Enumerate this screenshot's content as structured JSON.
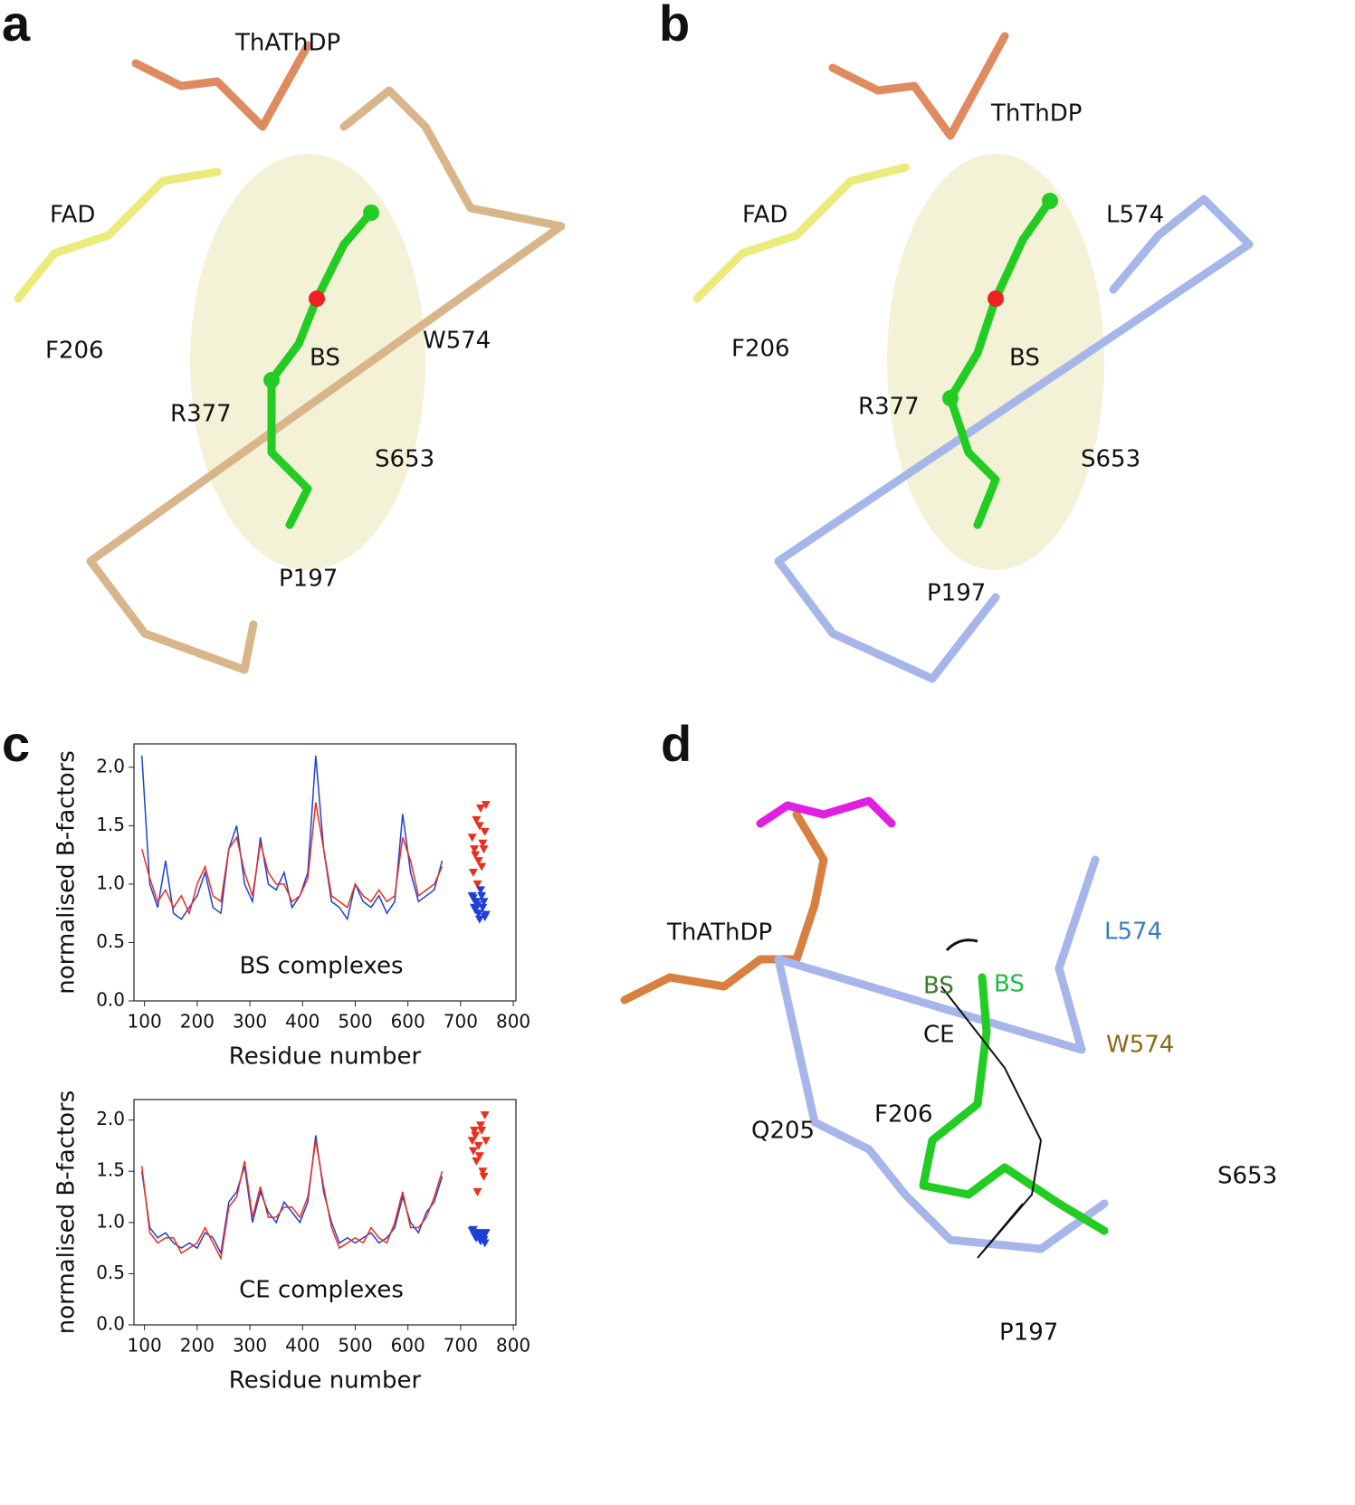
{
  "panel_a": {
    "label": "a",
    "texts": [
      "ThAThDP",
      "FAD",
      "F206",
      "R377",
      "BS",
      "W574",
      "S653",
      "P197"
    ]
  },
  "panel_b": {
    "label": "b",
    "texts": [
      "ThThDP",
      "FAD",
      "L574",
      "F206",
      "R377",
      "BS",
      "S653",
      "P197"
    ]
  },
  "panel_c": {
    "label": "c"
  },
  "panel_d": {
    "label": "d",
    "texts": [
      "ThAThDP",
      "L574",
      "BS",
      "BS",
      "CE",
      "W574",
      "Q205",
      "F206",
      "S653",
      "P197"
    ]
  },
  "chart_data": [
    {
      "type": "line",
      "ylabel": "normalised B-factors",
      "xlabel": "Residue number",
      "annotation": "BS complexes",
      "xlim": [
        80,
        805
      ],
      "ylim": [
        0,
        2.2
      ],
      "xticks": [
        100,
        200,
        300,
        400,
        500,
        600,
        700,
        800
      ],
      "yticks": [
        {
          "value": 0,
          "label": "0.0"
        },
        0.5,
        {
          "value": 1,
          "label": "1.0"
        },
        1.5,
        {
          "value": 2,
          "label": "2.0"
        }
      ],
      "series": [
        {
          "color": "#1f3fd8",
          "x": [
            95,
            110,
            125,
            140,
            155,
            170,
            185,
            200,
            215,
            230,
            245,
            260,
            275,
            290,
            305,
            320,
            335,
            350,
            365,
            380,
            395,
            410,
            425,
            440,
            455,
            470,
            485,
            500,
            515,
            530,
            545,
            560,
            575,
            590,
            605,
            620,
            635,
            650,
            665
          ],
          "values": [
            2.1,
            1.0,
            0.8,
            1.2,
            0.75,
            0.7,
            0.8,
            0.9,
            1.1,
            0.8,
            0.75,
            1.3,
            1.5,
            1.0,
            0.85,
            1.4,
            1.0,
            0.95,
            1.1,
            0.8,
            0.9,
            1.1,
            2.1,
            1.3,
            0.85,
            0.8,
            0.7,
            1.0,
            0.85,
            0.8,
            0.9,
            0.75,
            0.85,
            1.6,
            1.1,
            0.85,
            0.9,
            0.95,
            1.2
          ]
        },
        {
          "color": "#e8301c",
          "x": [
            95,
            110,
            125,
            140,
            155,
            170,
            185,
            200,
            215,
            230,
            245,
            260,
            275,
            290,
            305,
            320,
            335,
            350,
            365,
            380,
            395,
            410,
            425,
            440,
            455,
            470,
            485,
            500,
            515,
            530,
            545,
            560,
            575,
            590,
            605,
            620,
            635,
            650,
            665
          ],
          "values": [
            1.3,
            1.05,
            0.85,
            0.95,
            0.8,
            0.9,
            0.75,
            1.0,
            1.15,
            0.9,
            0.85,
            1.3,
            1.4,
            1.1,
            0.9,
            1.35,
            1.1,
            1.0,
            1.0,
            0.85,
            0.9,
            1.05,
            1.7,
            1.3,
            0.9,
            0.85,
            0.8,
            1.0,
            0.9,
            0.85,
            0.95,
            0.85,
            0.9,
            1.4,
            1.2,
            0.9,
            0.95,
            1.0,
            1.15
          ]
        },
        {
          "color": "#e8301c",
          "marker": "triangle",
          "x": [
            722,
            726,
            730,
            734,
            738,
            742,
            746,
            724,
            728,
            732,
            736,
            740,
            744,
            748
          ],
          "values": [
            1.4,
            1.3,
            1.55,
            1.2,
            1.65,
            1.35,
            1.45,
            1.1,
            1.25,
            1.0,
            1.5,
            1.15,
            1.3,
            1.68
          ]
        },
        {
          "color": "#1f3fd8",
          "marker": "triangle",
          "x": [
            722,
            726,
            730,
            734,
            738,
            742,
            746,
            724,
            728,
            732,
            736,
            740,
            744,
            748
          ],
          "values": [
            0.9,
            0.8,
            0.85,
            0.75,
            0.95,
            0.8,
            0.72,
            0.88,
            0.78,
            0.82,
            0.7,
            0.9,
            0.85,
            0.74
          ]
        }
      ]
    },
    {
      "type": "line",
      "ylabel": "normalised B-factors",
      "xlabel": "Residue number",
      "annotation": "CE complexes",
      "xlim": [
        80,
        805
      ],
      "ylim": [
        0,
        2.2
      ],
      "xticks": [
        100,
        200,
        300,
        400,
        500,
        600,
        700,
        800
      ],
      "yticks": [
        {
          "value": 0,
          "label": "0.0"
        },
        0.5,
        {
          "value": 1,
          "label": "1.0"
        },
        1.5,
        {
          "value": 2,
          "label": "2.0"
        }
      ],
      "series": [
        {
          "color": "#1f3fd8",
          "x": [
            95,
            110,
            125,
            140,
            155,
            170,
            185,
            200,
            215,
            230,
            245,
            260,
            275,
            290,
            305,
            320,
            335,
            350,
            365,
            380,
            395,
            410,
            425,
            440,
            455,
            470,
            485,
            500,
            515,
            530,
            545,
            560,
            575,
            590,
            605,
            620,
            635,
            650,
            665
          ],
          "values": [
            1.5,
            0.95,
            0.85,
            0.9,
            0.8,
            0.75,
            0.8,
            0.75,
            0.9,
            0.85,
            0.7,
            1.2,
            1.3,
            1.55,
            1.0,
            1.3,
            1.1,
            1.0,
            1.2,
            1.1,
            1.0,
            1.2,
            1.85,
            1.3,
            1.0,
            0.8,
            0.85,
            0.8,
            0.85,
            0.9,
            0.8,
            0.85,
            0.95,
            1.25,
            1.0,
            0.9,
            1.1,
            1.2,
            1.45
          ]
        },
        {
          "color": "#e8301c",
          "x": [
            95,
            110,
            125,
            140,
            155,
            170,
            185,
            200,
            215,
            230,
            245,
            260,
            275,
            290,
            305,
            320,
            335,
            350,
            365,
            380,
            395,
            410,
            425,
            440,
            455,
            470,
            485,
            500,
            515,
            530,
            545,
            560,
            575,
            590,
            605,
            620,
            635,
            650,
            665
          ],
          "values": [
            1.55,
            0.9,
            0.8,
            0.85,
            0.85,
            0.7,
            0.75,
            0.8,
            0.95,
            0.8,
            0.65,
            1.15,
            1.25,
            1.6,
            1.05,
            1.35,
            1.05,
            1.05,
            1.15,
            1.15,
            1.05,
            1.25,
            1.8,
            1.35,
            0.95,
            0.75,
            0.8,
            0.85,
            0.8,
            0.95,
            0.85,
            0.8,
            1.0,
            1.3,
            0.95,
            0.95,
            1.05,
            1.25,
            1.5
          ]
        },
        {
          "color": "#e8301c",
          "marker": "triangle",
          "x": [
            722,
            726,
            730,
            734,
            738,
            742,
            746,
            724,
            728,
            732,
            736,
            740,
            744,
            748
          ],
          "values": [
            1.8,
            1.9,
            1.6,
            1.75,
            1.95,
            1.5,
            2.05,
            1.7,
            1.85,
            1.3,
            1.65,
            1.9,
            1.45,
            1.8
          ]
        },
        {
          "color": "#1f3fd8",
          "marker": "triangle",
          "x": [
            722,
            726,
            730,
            734,
            738,
            742,
            746,
            724,
            728,
            732,
            736,
            740,
            744,
            748
          ],
          "values": [
            0.92,
            0.88,
            0.85,
            0.9,
            0.82,
            0.87,
            0.8,
            0.93,
            0.86,
            0.9,
            0.84,
            0.89,
            0.83,
            0.9
          ]
        }
      ]
    }
  ]
}
